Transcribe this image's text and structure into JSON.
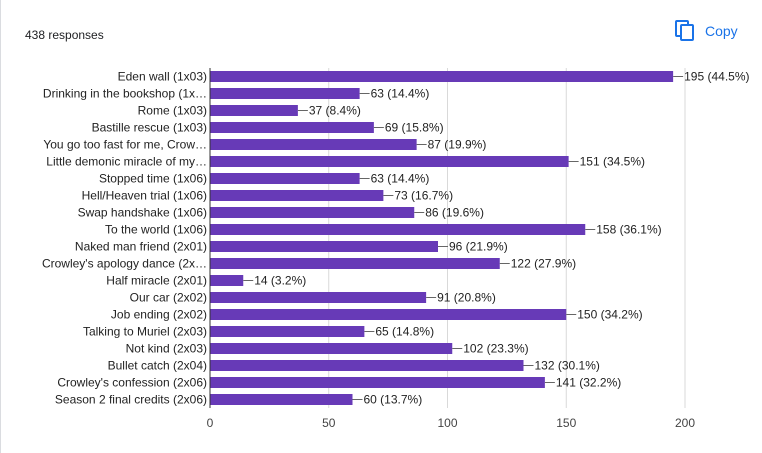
{
  "header": {
    "responses_text": "438 responses",
    "copy_label": "Copy",
    "copy_icon": "copy-icon"
  },
  "colors": {
    "bar": "#673ab7",
    "grid": "#d9d9d9",
    "accent": "#1a73e8"
  },
  "chart_data": {
    "type": "bar",
    "orientation": "horizontal",
    "categories": [
      "Eden wall (1x03)",
      "Drinking in the bookshop (1x…",
      "Rome (1x03)",
      "Bastille rescue (1x03)",
      "You go too fast for me, Crow…",
      "Little demonic miracle of my…",
      "Stopped time (1x06)",
      "Hell/Heaven trial (1x06)",
      "Swap handshake (1x06)",
      "To the world (1x06)",
      "Naked man friend (2x01)",
      "Crowley's apology dance (2x…",
      "Half miracle (2x01)",
      "Our car (2x02)",
      "Job ending (2x02)",
      "Talking to Muriel (2x03)",
      "Not kind (2x03)",
      "Bullet catch (2x04)",
      "Crowley's confession (2x06)",
      "Season 2 final credits (2x06)"
    ],
    "values": [
      195,
      63,
      37,
      69,
      87,
      151,
      63,
      73,
      86,
      158,
      96,
      122,
      14,
      91,
      150,
      65,
      102,
      132,
      141,
      60
    ],
    "value_labels": [
      "195 (44.5%)",
      "63 (14.4%)",
      "37 (8.4%)",
      "69 (15.8%)",
      "87 (19.9%)",
      "151 (34.5%)",
      "63 (14.4%)",
      "73 (16.7%)",
      "86 (19.6%)",
      "158 (36.1%)",
      "96 (21.9%)",
      "122 (27.9%)",
      "14 (3.2%)",
      "91 (20.8%)",
      "150 (34.2%)",
      "65 (14.8%)",
      "102 (23.3%)",
      "132 (30.1%)",
      "141 (32.2%)",
      "60 (13.7%)"
    ],
    "xticks": [
      0,
      50,
      100,
      150,
      200
    ],
    "xlim": [
      0,
      200
    ],
    "grid": true,
    "title": "",
    "xlabel": "",
    "ylabel": ""
  }
}
